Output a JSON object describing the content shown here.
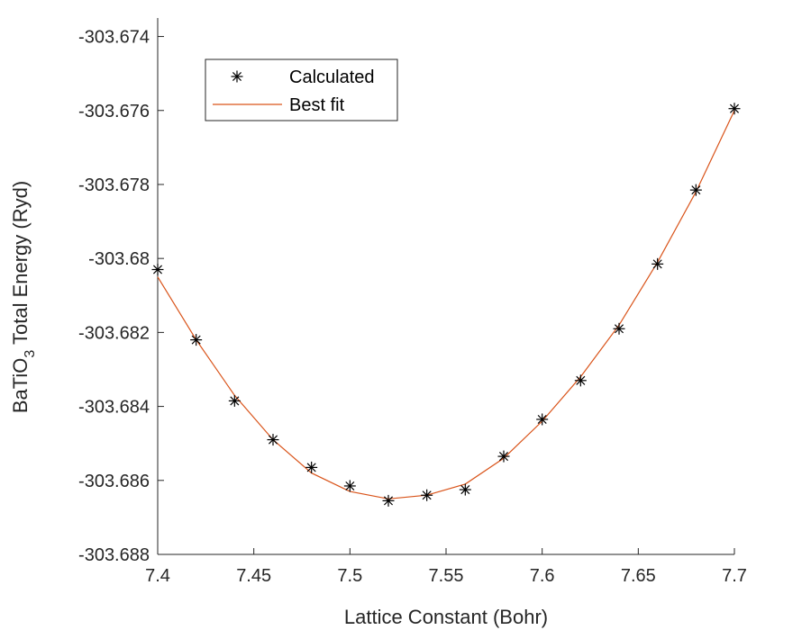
{
  "chart_data": {
    "type": "line",
    "xlabel": "Lattice Constant (Bohr)",
    "ylabel": {
      "main": "BaTiO",
      "subscript": "3",
      "rest": " Total Energy (Ryd)"
    },
    "xlim": [
      7.4,
      7.7
    ],
    "ylim": [
      -303.688,
      -303.6735
    ],
    "x_ticks": [
      7.4,
      7.45,
      7.5,
      7.55,
      7.6,
      7.65,
      7.7
    ],
    "x_tick_labels": [
      "7.4",
      "7.45",
      "7.5",
      "7.55",
      "7.6",
      "7.65",
      "7.7"
    ],
    "y_ticks": [
      -303.688,
      -303.686,
      -303.684,
      -303.682,
      -303.68,
      -303.678,
      -303.676,
      -303.674
    ],
    "y_tick_labels": [
      "-303.688",
      "-303.686",
      "-303.684",
      "-303.682",
      "-303.68",
      "-303.678",
      "-303.676",
      "-303.674"
    ],
    "grid": false,
    "legend_position": "top-left",
    "series": [
      {
        "name": "Calculated",
        "style": "marker",
        "marker": "asterisk",
        "color": "#000000",
        "x": [
          7.4,
          7.42,
          7.44,
          7.46,
          7.48,
          7.5,
          7.52,
          7.54,
          7.56,
          7.58,
          7.6,
          7.62,
          7.64,
          7.66,
          7.68,
          7.7
        ],
        "y": [
          -303.6803,
          -303.6822,
          -303.68385,
          -303.6849,
          -303.68565,
          -303.68615,
          -303.68655,
          -303.6864,
          -303.68625,
          -303.68535,
          -303.68435,
          -303.6833,
          -303.6819,
          -303.68015,
          -303.67815,
          -303.67595
        ]
      },
      {
        "name": "Best fit",
        "style": "line",
        "color": "#D95319",
        "x": [
          7.4,
          7.42,
          7.44,
          7.46,
          7.48,
          7.5,
          7.52,
          7.54,
          7.56,
          7.58,
          7.6,
          7.62,
          7.64,
          7.66,
          7.68,
          7.7
        ],
        "y": [
          -303.6805,
          -303.6822,
          -303.6837,
          -303.6849,
          -303.6858,
          -303.6863,
          -303.6865,
          -303.6864,
          -303.6861,
          -303.6854,
          -303.6844,
          -303.6832,
          -303.6818,
          -303.6801,
          -303.6782,
          -303.676
        ]
      }
    ]
  }
}
